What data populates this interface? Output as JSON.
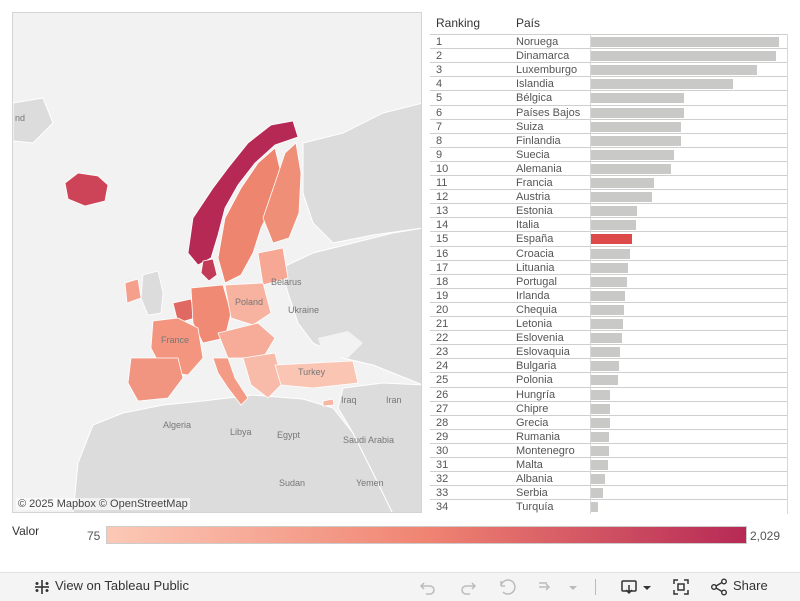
{
  "map": {
    "attribution": "© 2025 Mapbox © OpenStreetMap",
    "region_labels": [
      "nd",
      "Belarus",
      "Ukraine",
      "Algeria",
      "Libya",
      "Egypt",
      "Saudi Arabia",
      "Iraq",
      "Iran",
      "Sudan",
      "Yemen",
      "Turkey",
      "Poland",
      "France"
    ],
    "colors": {
      "low": "#fcc9b7",
      "mid": "#f07c6c",
      "high": "#b62955",
      "land_gray": "#dcdcdc",
      "water": "#f2f2f2"
    }
  },
  "table": {
    "header_rank": "Ranking",
    "header_country": "País",
    "highlight_color": "#dc4a4a",
    "bar_color": "#c9cac8",
    "rows": [
      {
        "rank": "1",
        "country": "Noruega",
        "value": 2029
      },
      {
        "rank": "2",
        "country": "Dinamarca",
        "value": 2000
      },
      {
        "rank": "3",
        "country": "Luxemburgo",
        "value": 1790
      },
      {
        "rank": "4",
        "country": "Islandia",
        "value": 1530
      },
      {
        "rank": "5",
        "country": "Bélgica",
        "value": 1000
      },
      {
        "rank": "6",
        "country": "Países Bajos",
        "value": 1000
      },
      {
        "rank": "7",
        "country": "Suiza",
        "value": 970
      },
      {
        "rank": "8",
        "country": "Finlandia",
        "value": 970
      },
      {
        "rank": "9",
        "country": "Suecia",
        "value": 900
      },
      {
        "rank": "10",
        "country": "Alemania",
        "value": 860
      },
      {
        "rank": "11",
        "country": "Francia",
        "value": 680
      },
      {
        "rank": "12",
        "country": "Austria",
        "value": 660
      },
      {
        "rank": "13",
        "country": "Estonia",
        "value": 500
      },
      {
        "rank": "14",
        "country": "Italia",
        "value": 490
      },
      {
        "rank": "15",
        "country": "España",
        "value": 440,
        "highlight": true
      },
      {
        "rank": "16",
        "country": "Croacia",
        "value": 420
      },
      {
        "rank": "17",
        "country": "Lituania",
        "value": 400
      },
      {
        "rank": "18",
        "country": "Portugal",
        "value": 390
      },
      {
        "rank": "19",
        "country": "Irlanda",
        "value": 370
      },
      {
        "rank": "20",
        "country": "Chequia",
        "value": 360
      },
      {
        "rank": "21",
        "country": "Letonia",
        "value": 340
      },
      {
        "rank": "22",
        "country": "Eslovenia",
        "value": 330
      },
      {
        "rank": "23",
        "country": "Eslovaquia",
        "value": 310
      },
      {
        "rank": "24",
        "country": "Bulgaria",
        "value": 300
      },
      {
        "rank": "25",
        "country": "Polonia",
        "value": 290
      },
      {
        "rank": "26",
        "country": "Hungría",
        "value": 200
      },
      {
        "rank": "27",
        "country": "Chipre",
        "value": 200
      },
      {
        "rank": "28",
        "country": "Grecia",
        "value": 200
      },
      {
        "rank": "29",
        "country": "Rumania",
        "value": 190
      },
      {
        "rank": "30",
        "country": "Montenegro",
        "value": 190
      },
      {
        "rank": "31",
        "country": "Malta",
        "value": 180
      },
      {
        "rank": "32",
        "country": "Albania",
        "value": 150
      },
      {
        "rank": "33",
        "country": "Serbia",
        "value": 130
      },
      {
        "rank": "34",
        "country": "Turquía",
        "value": 75
      }
    ],
    "max_value": 2029
  },
  "legend": {
    "title": "Valor",
    "min": "75",
    "max": "2,029",
    "color_low": "#fcc9b7",
    "color_high": "#b62955"
  },
  "toolbar": {
    "view_label": "View on Tableau Public",
    "share_label": "Share",
    "icons": [
      "tableau-logo-icon",
      "undo-icon",
      "redo-icon",
      "revert-icon",
      "refresh-icon",
      "dropdown-icon",
      "download-icon",
      "fullscreen-icon",
      "share-icon"
    ]
  }
}
